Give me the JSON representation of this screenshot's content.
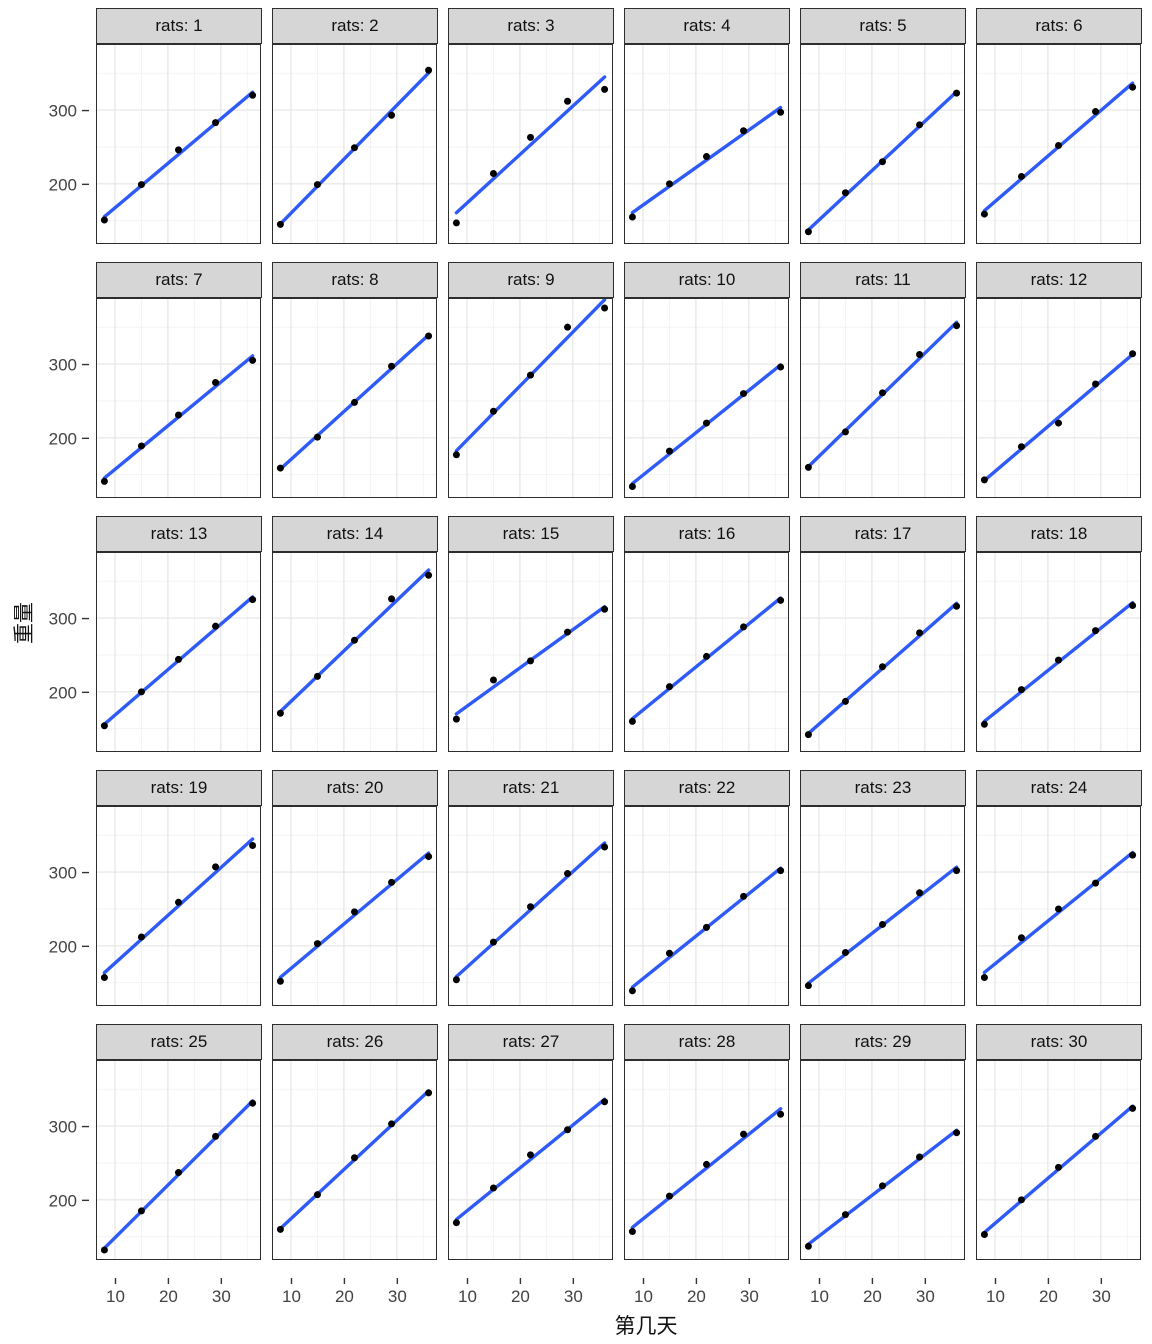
{
  "chart_data": {
    "type": "scatter",
    "title": "",
    "facet_variable": "rats",
    "facet_label_prefix": "rats: ",
    "xlabel": "第几天",
    "ylabel": "重量",
    "x": [
      8,
      15,
      22,
      29,
      36
    ],
    "x_ticks": [
      10,
      20,
      30
    ],
    "x_minor_ticks": [
      15,
      25,
      35
    ],
    "y_ticks": [
      200,
      300
    ],
    "y_minor_ticks": [
      150,
      250,
      350
    ],
    "xlim": [
      6.6,
      37.4
    ],
    "ylim": [
      119.8,
      388.2
    ],
    "grid": true,
    "legend": "none",
    "smooth": "lm",
    "colors": {
      "line": "#2e5bf7",
      "point": "#000000",
      "strip_bg": "#d6d6d6",
      "panel_border": "#2e2e2e",
      "grid_major": "#e5e5e5",
      "grid_minor": "#f2f2f2",
      "tick": "#333333"
    },
    "facets": [
      {
        "label": "rats: 1",
        "weights": [
          151,
          199,
          246,
          283,
          320
        ]
      },
      {
        "label": "rats: 2",
        "weights": [
          145,
          199,
          249,
          293,
          354
        ]
      },
      {
        "label": "rats: 3",
        "weights": [
          147,
          214,
          263,
          312,
          328
        ]
      },
      {
        "label": "rats: 4",
        "weights": [
          155,
          200,
          237,
          272,
          297
        ]
      },
      {
        "label": "rats: 5",
        "weights": [
          135,
          188,
          230,
          280,
          323
        ]
      },
      {
        "label": "rats: 6",
        "weights": [
          159,
          210,
          252,
          298,
          331
        ]
      },
      {
        "label": "rats: 7",
        "weights": [
          141,
          189,
          231,
          275,
          305
        ]
      },
      {
        "label": "rats: 8",
        "weights": [
          159,
          201,
          248,
          297,
          338
        ]
      },
      {
        "label": "rats: 9",
        "weights": [
          177,
          236,
          285,
          350,
          376
        ]
      },
      {
        "label": "rats: 10",
        "weights": [
          134,
          182,
          220,
          260,
          296
        ]
      },
      {
        "label": "rats: 11",
        "weights": [
          160,
          208,
          261,
          313,
          352
        ]
      },
      {
        "label": "rats: 12",
        "weights": [
          143,
          188,
          220,
          273,
          314
        ]
      },
      {
        "label": "rats: 13",
        "weights": [
          154,
          200,
          244,
          289,
          325
        ]
      },
      {
        "label": "rats: 14",
        "weights": [
          171,
          221,
          270,
          326,
          358
        ]
      },
      {
        "label": "rats: 15",
        "weights": [
          163,
          216,
          242,
          281,
          312
        ]
      },
      {
        "label": "rats: 16",
        "weights": [
          160,
          207,
          248,
          288,
          324
        ]
      },
      {
        "label": "rats: 17",
        "weights": [
          142,
          187,
          234,
          280,
          316
        ]
      },
      {
        "label": "rats: 18",
        "weights": [
          156,
          203,
          243,
          283,
          317
        ]
      },
      {
        "label": "rats: 19",
        "weights": [
          157,
          212,
          259,
          307,
          336
        ]
      },
      {
        "label": "rats: 20",
        "weights": [
          152,
          203,
          246,
          286,
          321
        ]
      },
      {
        "label": "rats: 21",
        "weights": [
          154,
          205,
          253,
          298,
          334
        ]
      },
      {
        "label": "rats: 22",
        "weights": [
          139,
          190,
          225,
          267,
          302
        ]
      },
      {
        "label": "rats: 23",
        "weights": [
          146,
          191,
          229,
          272,
          302
        ]
      },
      {
        "label": "rats: 24",
        "weights": [
          157,
          211,
          250,
          285,
          323
        ]
      },
      {
        "label": "rats: 25",
        "weights": [
          132,
          185,
          237,
          286,
          331
        ]
      },
      {
        "label": "rats: 26",
        "weights": [
          160,
          207,
          257,
          303,
          345
        ]
      },
      {
        "label": "rats: 27",
        "weights": [
          169,
          216,
          261,
          295,
          333
        ]
      },
      {
        "label": "rats: 28",
        "weights": [
          157,
          205,
          248,
          289,
          316
        ]
      },
      {
        "label": "rats: 29",
        "weights": [
          137,
          180,
          219,
          258,
          291
        ]
      },
      {
        "label": "rats: 30",
        "weights": [
          153,
          200,
          244,
          286,
          324
        ]
      }
    ]
  }
}
